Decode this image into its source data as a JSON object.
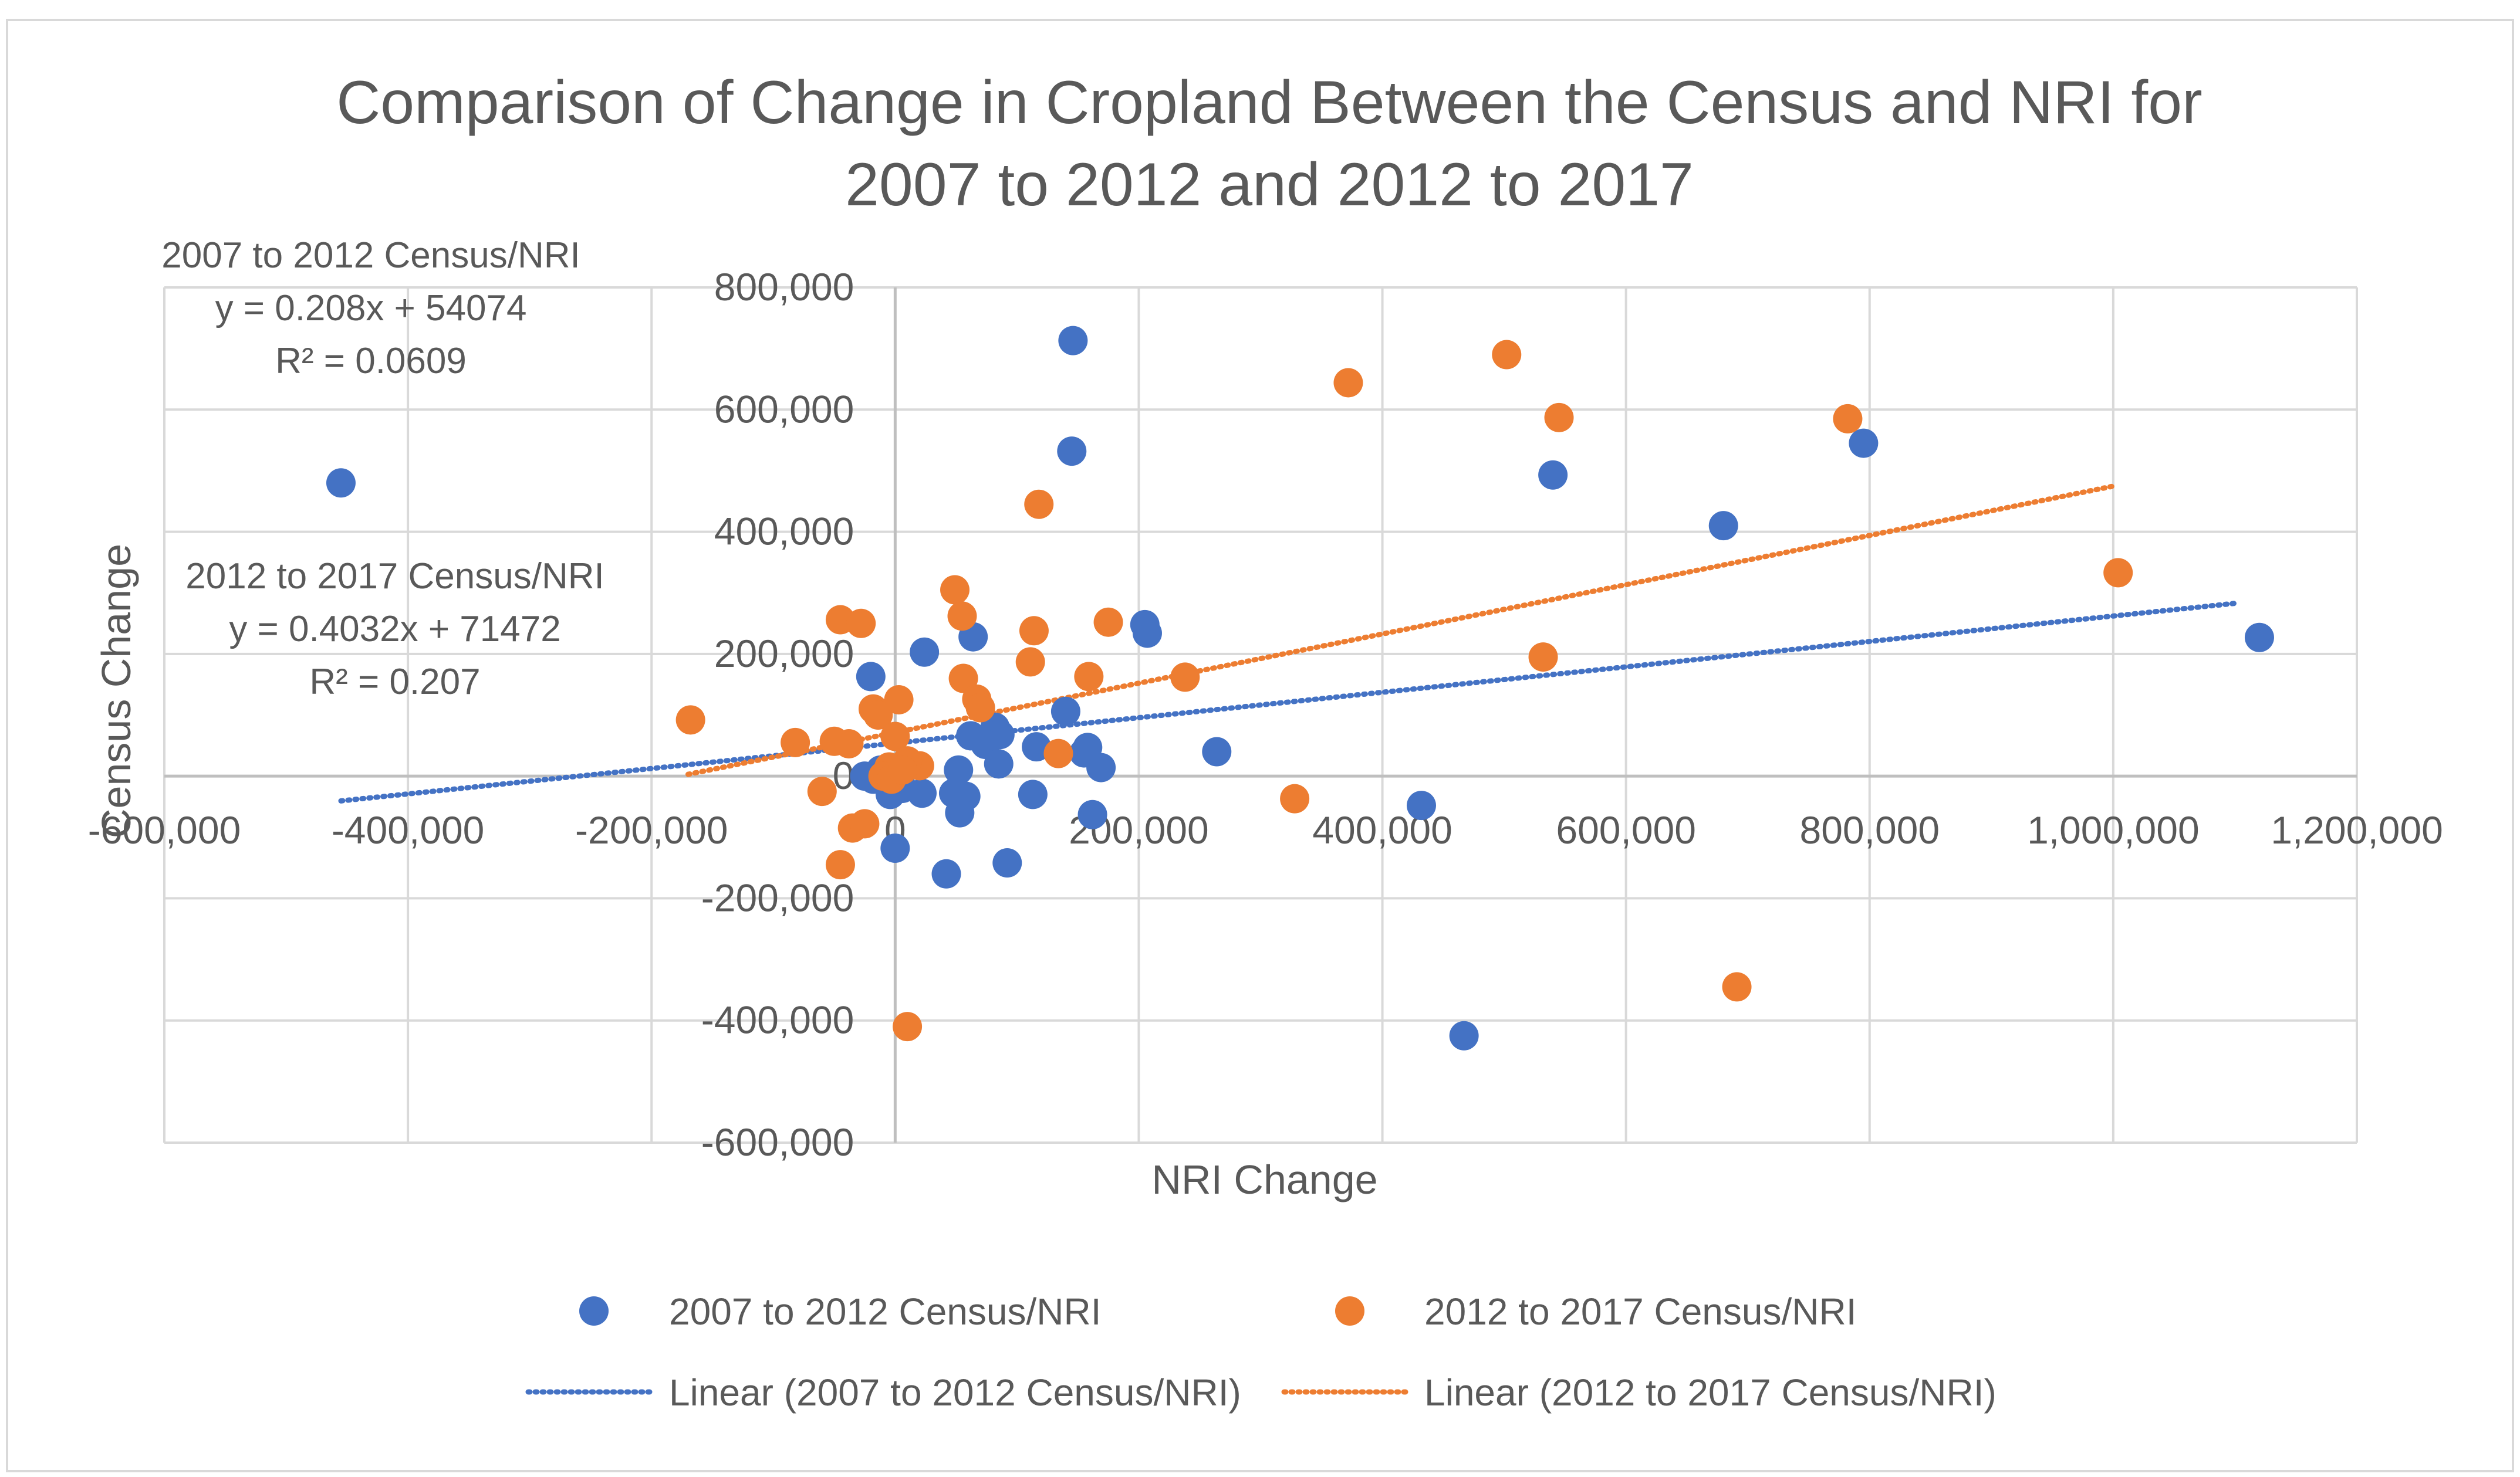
{
  "chart_data": {
    "type": "scatter",
    "title_lines": [
      "Comparison of Change in Cropland Between the Census and NRI for",
      "2007 to 2012 and 2012 to 2017"
    ],
    "xlabel": "NRI Change",
    "ylabel": "Census Change",
    "xlim": [
      -600000,
      1200000
    ],
    "ylim": [
      -600000,
      800000
    ],
    "x_step": 200000,
    "y_step": 200000,
    "x_ticks": [
      "-600,000",
      "-400,000",
      "-200,000",
      "0",
      "200,000",
      "400,000",
      "600,000",
      "800,000",
      "1,000,000",
      "1,200,000"
    ],
    "y_ticks": [
      "-600,000",
      "-400,000",
      "-200,000",
      "0",
      "200,000",
      "400,000",
      "600,000",
      "800,000"
    ],
    "grid": true,
    "legend_position": "bottom",
    "series": [
      {
        "name": "2007 to 2012 Census/NRI",
        "color": "#4472C4",
        "trendline": {
          "label": "Linear (2007 to 2012 Census/NRI)",
          "slope": 0.208,
          "intercept": 54074,
          "x_range": [
            -455000,
            1100000
          ],
          "equation": "y = 0.208x + 54074",
          "r2": "R² = 0.0609"
        },
        "points": [
          [
            -455000,
            480000
          ],
          [
            146000,
            713000
          ],
          [
            145000,
            532000
          ],
          [
            540000,
            493000
          ],
          [
            795000,
            545000
          ],
          [
            680000,
            410000
          ],
          [
            1120000,
            227000
          ],
          [
            205000,
            248000
          ],
          [
            207000,
            234000
          ],
          [
            64000,
            228000
          ],
          [
            24000,
            203000
          ],
          [
            -20000,
            163000
          ],
          [
            140000,
            106000
          ],
          [
            82000,
            80000
          ],
          [
            86000,
            68000
          ],
          [
            62000,
            66000
          ],
          [
            74000,
            52000
          ],
          [
            158000,
            47000
          ],
          [
            155000,
            38000
          ],
          [
            116000,
            48000
          ],
          [
            264000,
            40000
          ],
          [
            169000,
            14000
          ],
          [
            85000,
            20000
          ],
          [
            52000,
            10000
          ],
          [
            -12000,
            10000
          ],
          [
            -25000,
            0
          ],
          [
            -18000,
            -5000
          ],
          [
            -8000,
            0
          ],
          [
            2000,
            5000
          ],
          [
            6000,
            -20000
          ],
          [
            -4000,
            -30000
          ],
          [
            22000,
            -28000
          ],
          [
            48000,
            -28000
          ],
          [
            58000,
            -33000
          ],
          [
            113000,
            -30000
          ],
          [
            53000,
            -60000
          ],
          [
            162000,
            -63000
          ],
          [
            0,
            -118000
          ],
          [
            92000,
            -142000
          ],
          [
            42000,
            -160000
          ],
          [
            432000,
            -48000
          ],
          [
            467000,
            -425000
          ]
        ]
      },
      {
        "name": "2012 to 2017 Census/NRI",
        "color": "#ED7D31",
        "trendline": {
          "label": "Linear (2012 to 2017 Census/NRI)",
          "slope": 0.4032,
          "intercept": 71472,
          "x_range": [
            -170000,
            1000000
          ],
          "equation": "y = 0.4032x + 71472",
          "r2": "R² = 0.207"
        },
        "points": [
          [
            502000,
            690000
          ],
          [
            372000,
            644000
          ],
          [
            545000,
            587000
          ],
          [
            782000,
            585000
          ],
          [
            118000,
            445000
          ],
          [
            1004000,
            333000
          ],
          [
            49000,
            305000
          ],
          [
            55000,
            262000
          ],
          [
            -45000,
            256000
          ],
          [
            -28000,
            250000
          ],
          [
            175000,
            252000
          ],
          [
            114000,
            238000
          ],
          [
            111000,
            187000
          ],
          [
            532000,
            195000
          ],
          [
            56000,
            160000
          ],
          [
            159000,
            163000
          ],
          [
            238000,
            162000
          ],
          [
            67000,
            126000
          ],
          [
            3000,
            125000
          ],
          [
            70000,
            112000
          ],
          [
            -18000,
            110000
          ],
          [
            -14000,
            100000
          ],
          [
            -168000,
            92000
          ],
          [
            134000,
            37000
          ],
          [
            -82000,
            55000
          ],
          [
            -50000,
            57000
          ],
          [
            -38000,
            53000
          ],
          [
            0,
            65000
          ],
          [
            20000,
            17000
          ],
          [
            10000,
            25000
          ],
          [
            -5000,
            15000
          ],
          [
            -10000,
            0
          ],
          [
            -3000,
            -5000
          ],
          [
            6000,
            10000
          ],
          [
            -60000,
            -25000
          ],
          [
            -35000,
            -85000
          ],
          [
            -25000,
            -78000
          ],
          [
            -45000,
            -145000
          ],
          [
            328000,
            -37000
          ],
          [
            691000,
            -345000
          ],
          [
            10000,
            -410000
          ]
        ]
      }
    ],
    "annotations": [
      {
        "lines": [
          "2007 to 2012 Census/NRI",
          "y = 0.208x + 54074",
          "R² = 0.0609"
        ]
      },
      {
        "lines": [
          "2012 to 2017 Census/NRI",
          "y = 0.4032x + 71472",
          "R² = 0.207"
        ]
      }
    ]
  }
}
